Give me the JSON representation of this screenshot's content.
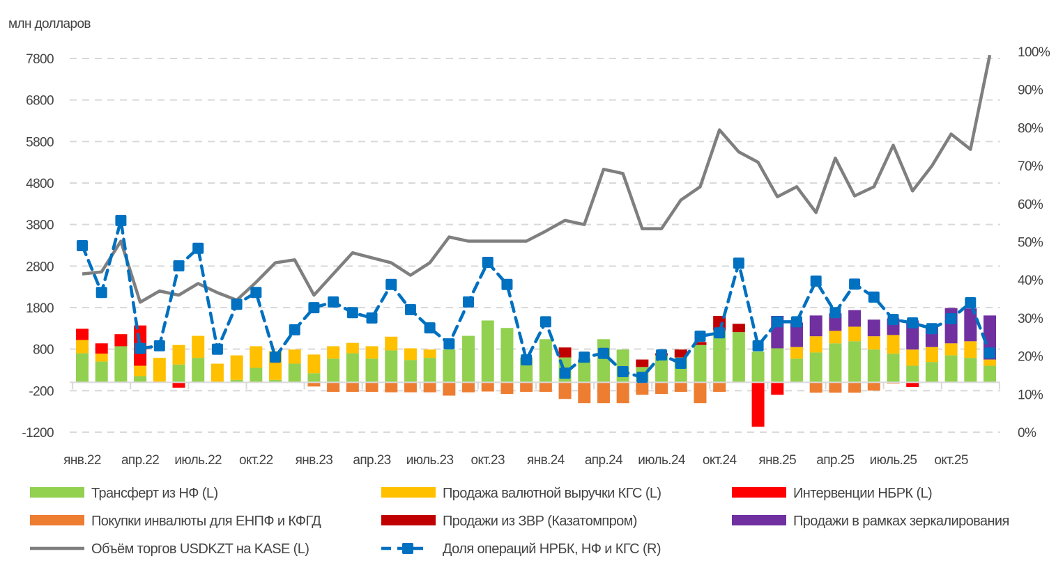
{
  "chart_data": {
    "type": "bar+line",
    "ylabel": "млн долларов",
    "ylim_left": [
      -1200,
      7800
    ],
    "yticks_left": [
      "7800",
      "6800",
      "5800",
      "4800",
      "3800",
      "2800",
      "1800",
      "800",
      "-200",
      "-1200"
    ],
    "ylim_right": [
      0,
      100
    ],
    "yticks_right": [
      "100%",
      "90%",
      "80%",
      "70%",
      "60%",
      "50%",
      "40%",
      "30%",
      "20%",
      "10%",
      "0%"
    ],
    "x_tick_labels": [
      "янв.22",
      "апр.22",
      "июль.22",
      "окт.22",
      "янв.23",
      "апр.23",
      "июль.23",
      "окт.23",
      "янв.24",
      "апр.24",
      "июль.24",
      "окт.24",
      "янв.25",
      "апр.25",
      "июль.25",
      "окт.25"
    ],
    "months_count": 48,
    "grid": true,
    "legend_position": "bottom",
    "series": [
      {
        "name": "Трансферт из НФ (L)",
        "kind": "bar",
        "color": "#92d050",
        "values": [
          700,
          500,
          870,
          150,
          0,
          430,
          590,
          0,
          60,
          350,
          60,
          450,
          220,
          570,
          700,
          570,
          770,
          540,
          590,
          790,
          1120,
          1490,
          1310,
          600,
          1040,
          600,
          570,
          1040,
          790,
          370,
          650,
          600,
          900,
          1250,
          1210,
          740,
          820,
          570,
          720,
          940,
          990,
          790,
          690,
          400,
          490,
          650,
          590,
          400
        ]
      },
      {
        "name": "Продажа валютной выручки КГС (L)",
        "kind": "bar",
        "color": "#ffc000",
        "values": [
          320,
          190,
          0,
          250,
          590,
          470,
          530,
          450,
          590,
          520,
          690,
          340,
          450,
          300,
          250,
          300,
          330,
          280,
          200,
          0,
          0,
          0,
          0,
          0,
          0,
          0,
          0,
          0,
          0,
          0,
          0,
          0,
          0,
          0,
          0,
          0,
          0,
          280,
          390,
          300,
          350,
          320,
          450,
          390,
          360,
          290,
          400,
          150
        ]
      },
      {
        "name": "Интервенции НБРК (L)",
        "kind": "bar",
        "color": "#ff0000",
        "values": [
          270,
          250,
          290,
          970,
          0,
          -130,
          0,
          0,
          0,
          0,
          0,
          0,
          0,
          0,
          0,
          0,
          0,
          0,
          0,
          0,
          0,
          0,
          0,
          0,
          0,
          0,
          0,
          0,
          0,
          0,
          0,
          0,
          0,
          0,
          0,
          -1070,
          -300,
          0,
          0,
          0,
          0,
          0,
          0,
          -110,
          0,
          0,
          0,
          0
        ]
      },
      {
        "name": "Покупки инвалюты для ЕНПФ и КФГД",
        "kind": "bar",
        "color": "#ed7d31",
        "values": [
          0,
          0,
          0,
          0,
          0,
          0,
          0,
          0,
          0,
          0,
          0,
          0,
          -100,
          -230,
          -230,
          -230,
          -240,
          -240,
          -240,
          -320,
          -240,
          -220,
          -280,
          -230,
          -230,
          -400,
          -500,
          -500,
          -500,
          -300,
          -280,
          -230,
          -500,
          -230,
          0,
          0,
          0,
          0,
          -250,
          -250,
          -250,
          -200,
          -30,
          0,
          0,
          0,
          0,
          0
        ]
      },
      {
        "name": "Продажи из ЗВР (Казатомпром)",
        "kind": "bar",
        "color": "#c00000",
        "values": [
          0,
          0,
          0,
          0,
          0,
          0,
          0,
          0,
          0,
          0,
          0,
          0,
          0,
          0,
          0,
          0,
          0,
          0,
          0,
          0,
          0,
          0,
          0,
          0,
          0,
          240,
          0,
          0,
          0,
          180,
          50,
          190,
          70,
          350,
          200,
          0,
          0,
          0,
          0,
          0,
          0,
          0,
          0,
          0,
          0,
          0,
          0,
          0
        ]
      },
      {
        "name": "Продажи в рамках зеркалирования",
        "kind": "bar",
        "color": "#7030a0",
        "values": [
          0,
          0,
          0,
          0,
          0,
          0,
          0,
          0,
          0,
          0,
          0,
          0,
          0,
          0,
          0,
          0,
          0,
          0,
          0,
          0,
          0,
          0,
          0,
          0,
          0,
          0,
          0,
          0,
          0,
          0,
          0,
          0,
          0,
          0,
          0,
          0,
          780,
          590,
          500,
          420,
          400,
          400,
          400,
          700,
          530,
          850,
          790,
          1060
        ]
      },
      {
        "name": "Объём торгов USDKZT на KASE (L)",
        "kind": "line",
        "color": "#7f7f7f",
        "axis": "left",
        "values": [
          2610,
          2660,
          3400,
          1930,
          2200,
          2100,
          2380,
          2160,
          1980,
          2410,
          2880,
          2950,
          2100,
          2610,
          3120,
          3000,
          2880,
          2580,
          2880,
          3500,
          3400,
          3400,
          3400,
          3400,
          3640,
          3900,
          3800,
          5130,
          5030,
          3700,
          3700,
          4390,
          4710,
          6080,
          5550,
          5300,
          4470,
          4710,
          4090,
          5400,
          4490,
          4710,
          5710,
          4610,
          5210,
          5980,
          5610,
          7880
        ]
      },
      {
        "name": "Доля операций НРБК, НФ и КГС (R)",
        "kind": "line-dashed-markers",
        "color": "#0070c0",
        "axis": "right",
        "values": [
          49,
          36.7,
          55.6,
          22,
          22.7,
          43.7,
          48.3,
          21.8,
          33.6,
          36.7,
          19.7,
          26.9,
          32.7,
          34.2,
          31.4,
          30,
          38.8,
          32.2,
          27.4,
          23.2,
          34.2,
          44.6,
          38.8,
          19,
          29,
          15.5,
          19.7,
          20.7,
          15.9,
          14.4,
          20.3,
          18.1,
          25.2,
          26.1,
          44.4,
          22.7,
          29,
          29,
          39.7,
          31.4,
          38.9,
          35.5,
          29.6,
          28.7,
          27.2,
          29.8,
          34,
          20.8
        ]
      }
    ]
  }
}
